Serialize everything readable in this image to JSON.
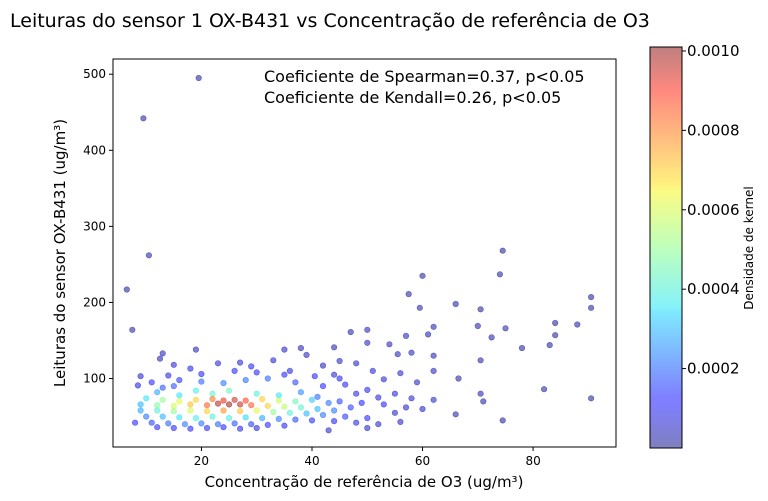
{
  "chart_data": {
    "type": "scatter",
    "title": "Leituras do sensor 1 OX-B431 vs Concentração de referência de O3",
    "xlabel": "Concentração de referência de O3 (ug/m³)",
    "ylabel": "Leituras do sensor OX-B431 (ug/m³)",
    "xlim": [
      4,
      95
    ],
    "ylim": [
      10,
      520
    ],
    "xticks": [
      20,
      40,
      60,
      80
    ],
    "yticks": [
      100,
      200,
      300,
      400,
      500
    ],
    "grid": false,
    "colormap": "jet",
    "point_alpha": 0.5,
    "annotations": [
      "Coeficiente de Spearman=0.37, p<0.05",
      "Coeficiente de Kendall=0.26, p<0.05"
    ],
    "colorbar": {
      "label": "Densidade de kernel",
      "range": [
        0.0,
        0.00101
      ],
      "ticks": [
        "0.0002",
        "0.0004",
        "0.0006",
        "0.0008",
        "0.0010"
      ],
      "tick_values": [
        0.0002,
        0.0004,
        0.0006,
        0.0008,
        0.001
      ]
    },
    "points": [
      [
        19.5,
        495,
        1e-05
      ],
      [
        9.5,
        442,
        1e-05
      ],
      [
        10.5,
        262,
        2e-05
      ],
      [
        74.5,
        268,
        1e-05
      ],
      [
        60,
        235,
        1e-05
      ],
      [
        74,
        237,
        1e-05
      ],
      [
        6.5,
        217,
        1e-05
      ],
      [
        57.5,
        211,
        2e-05
      ],
      [
        90.5,
        207,
        1e-05
      ],
      [
        90.5,
        193,
        1e-05
      ],
      [
        66,
        198,
        1e-05
      ],
      [
        70.5,
        191,
        1e-05
      ],
      [
        59.5,
        193,
        2e-05
      ],
      [
        75,
        166,
        2e-05
      ],
      [
        84,
        173,
        1e-05
      ],
      [
        88,
        171,
        1e-05
      ],
      [
        70,
        169,
        2e-05
      ],
      [
        72.5,
        154,
        2e-05
      ],
      [
        84,
        157,
        1e-05
      ],
      [
        7.5,
        164,
        2e-05
      ],
      [
        47,
        161,
        3e-05
      ],
      [
        50,
        164,
        3e-05
      ],
      [
        57,
        156,
        4e-05
      ],
      [
        61,
        158,
        3e-05
      ],
      [
        62,
        168,
        3e-05
      ],
      [
        78,
        140,
        1e-05
      ],
      [
        83,
        144,
        1e-05
      ],
      [
        54,
        145,
        4e-05
      ],
      [
        50,
        147,
        4e-05
      ],
      [
        44,
        141,
        3e-05
      ],
      [
        38,
        140,
        4e-05
      ],
      [
        35,
        138,
        5e-05
      ],
      [
        19,
        138,
        4e-05
      ],
      [
        13,
        133,
        4e-05
      ],
      [
        12.5,
        126,
        4e-05
      ],
      [
        39,
        131,
        4e-05
      ],
      [
        55.5,
        132,
        4e-05
      ],
      [
        58,
        134,
        4e-05
      ],
      [
        62,
        130,
        3e-05
      ],
      [
        70.5,
        124,
        2e-05
      ],
      [
        66.5,
        100,
        2e-05
      ],
      [
        48,
        120,
        5e-05
      ],
      [
        45,
        123,
        5e-05
      ],
      [
        42,
        117,
        5e-05
      ],
      [
        33,
        124,
        6e-05
      ],
      [
        27,
        121,
        7e-05
      ],
      [
        23,
        120,
        7e-05
      ],
      [
        15,
        118,
        7e-05
      ],
      [
        18,
        113,
        8e-05
      ],
      [
        29,
        116,
        9e-05
      ],
      [
        36,
        110,
        8e-05
      ],
      [
        40.5,
        103,
        9e-05
      ],
      [
        44,
        105,
        7e-05
      ],
      [
        51,
        110,
        6e-05
      ],
      [
        53,
        99,
        6e-05
      ],
      [
        56,
        107,
        5e-05
      ],
      [
        59,
        95,
        5e-05
      ],
      [
        62,
        110,
        4e-05
      ],
      [
        70.5,
        80,
        2e-05
      ],
      [
        71,
        70,
        2e-05
      ],
      [
        82,
        86,
        1e-05
      ],
      [
        90.5,
        74,
        1e-05
      ],
      [
        66,
        53,
        2e-05
      ],
      [
        74.5,
        45,
        2e-05
      ],
      [
        9,
        103,
        6e-05
      ],
      [
        8.5,
        91,
        8e-05
      ],
      [
        11,
        95,
        0.00012
      ],
      [
        13,
        88,
        0.00018
      ],
      [
        15,
        90,
        0.00018
      ],
      [
        20,
        96,
        0.0002
      ],
      [
        24,
        94,
        0.00022
      ],
      [
        28,
        98,
        0.00021
      ],
      [
        32,
        100,
        0.0002
      ],
      [
        37,
        95,
        0.00016
      ],
      [
        42,
        90,
        0.00013
      ],
      [
        46,
        92,
        0.00011
      ],
      [
        50,
        85,
        9e-05
      ],
      [
        55,
        80,
        7e-05
      ],
      [
        58,
        74,
        6e-05
      ],
      [
        62,
        72,
        5e-05
      ],
      [
        12,
        82,
        0.00028
      ],
      [
        16,
        78,
        0.00035
      ],
      [
        19,
        84,
        0.00038
      ],
      [
        22,
        80,
        0.00042
      ],
      [
        25,
        84,
        0.00044
      ],
      [
        30,
        80,
        0.0004
      ],
      [
        34,
        78,
        0.00035
      ],
      [
        38,
        82,
        0.00025
      ],
      [
        41,
        76,
        0.0002
      ],
      [
        45,
        70,
        0.00016
      ],
      [
        49,
        68,
        0.00012
      ],
      [
        53,
        66,
        0.0001
      ],
      [
        10,
        74,
        0.00035
      ],
      [
        13,
        72,
        0.0005
      ],
      [
        16,
        70,
        0.00062
      ],
      [
        19,
        72,
        0.0007
      ],
      [
        22,
        73,
        0.00082
      ],
      [
        24,
        71,
        0.00092
      ],
      [
        26,
        72,
        0.00095
      ],
      [
        28,
        71,
        0.00088
      ],
      [
        31,
        73,
        0.0007
      ],
      [
        34,
        71,
        0.00058
      ],
      [
        37,
        70,
        0.00045
      ],
      [
        40,
        72,
        0.00032
      ],
      [
        43,
        68,
        0.00022
      ],
      [
        47,
        62,
        0.00016
      ],
      [
        9,
        66,
        0.0003
      ],
      [
        12,
        65,
        0.00048
      ],
      [
        15,
        64,
        0.0006
      ],
      [
        18,
        66,
        0.00072
      ],
      [
        21,
        65,
        0.00085
      ],
      [
        23,
        67,
        0.00097
      ],
      [
        25,
        66,
        0.001
      ],
      [
        27,
        66,
        0.00096
      ],
      [
        29,
        65,
        0.00086
      ],
      [
        32,
        64,
        0.0007
      ],
      [
        35,
        63,
        0.00056
      ],
      [
        38,
        62,
        0.00042
      ],
      [
        41,
        60,
        0.0003
      ],
      [
        44,
        58,
        0.00022
      ],
      [
        9,
        58,
        0.00028
      ],
      [
        12,
        58,
        0.0004
      ],
      [
        15,
        57,
        0.0005
      ],
      [
        18,
        58,
        0.0006
      ],
      [
        21,
        57,
        0.0007
      ],
      [
        24,
        58,
        0.00078
      ],
      [
        27,
        57,
        0.00072
      ],
      [
        30,
        58,
        0.00062
      ],
      [
        33,
        56,
        0.0005
      ],
      [
        36,
        55,
        0.0004
      ],
      [
        39,
        54,
        0.0003
      ],
      [
        42,
        52,
        0.00022
      ],
      [
        46,
        50,
        0.00015
      ],
      [
        50,
        48,
        0.00011
      ],
      [
        10,
        50,
        0.00022
      ],
      [
        13,
        50,
        0.0003
      ],
      [
        16,
        49,
        0.00035
      ],
      [
        19,
        48,
        0.00038
      ],
      [
        22,
        50,
        0.0004
      ],
      [
        25,
        48,
        0.00038
      ],
      [
        28,
        49,
        0.00034
      ],
      [
        31,
        48,
        0.00028
      ],
      [
        34,
        47,
        0.00022
      ],
      [
        37,
        46,
        0.00017
      ],
      [
        40,
        45,
        0.00013
      ],
      [
        44,
        44,
        0.0001
      ],
      [
        48,
        42,
        8e-05
      ],
      [
        52,
        40,
        6e-05
      ],
      [
        56,
        43,
        5e-05
      ],
      [
        8,
        42,
        0.00012
      ],
      [
        11,
        42,
        0.00016
      ],
      [
        14,
        41,
        0.0002
      ],
      [
        17,
        40,
        0.00022
      ],
      [
        20,
        41,
        0.00022
      ],
      [
        23,
        40,
        0.0002
      ],
      [
        26,
        41,
        0.00018
      ],
      [
        29,
        40,
        0.00015
      ],
      [
        32,
        39,
        0.00012
      ],
      [
        35,
        38,
        0.0001
      ],
      [
        12,
        36,
        0.0001
      ],
      [
        15,
        35,
        0.00012
      ],
      [
        18,
        34,
        0.00012
      ],
      [
        21,
        35,
        0.00011
      ],
      [
        24,
        36,
        0.0001
      ],
      [
        27,
        34,
        8e-05
      ],
      [
        30,
        35,
        7e-05
      ],
      [
        43,
        32,
        5e-05
      ],
      [
        50,
        35,
        5e-05
      ],
      [
        55,
        55,
        6e-05
      ],
      [
        57,
        62,
        6e-05
      ],
      [
        60,
        60,
        5e-05
      ],
      [
        52,
        75,
        7e-05
      ],
      [
        48,
        80,
        9e-05
      ],
      [
        45,
        100,
        8e-05
      ],
      [
        35,
        105,
        0.0001
      ],
      [
        30,
        108,
        0.00011
      ],
      [
        26,
        110,
        0.0001
      ],
      [
        20,
        106,
        0.0001
      ],
      [
        14,
        104,
        9e-05
      ],
      [
        16,
        98,
        0.00014
      ]
    ]
  }
}
